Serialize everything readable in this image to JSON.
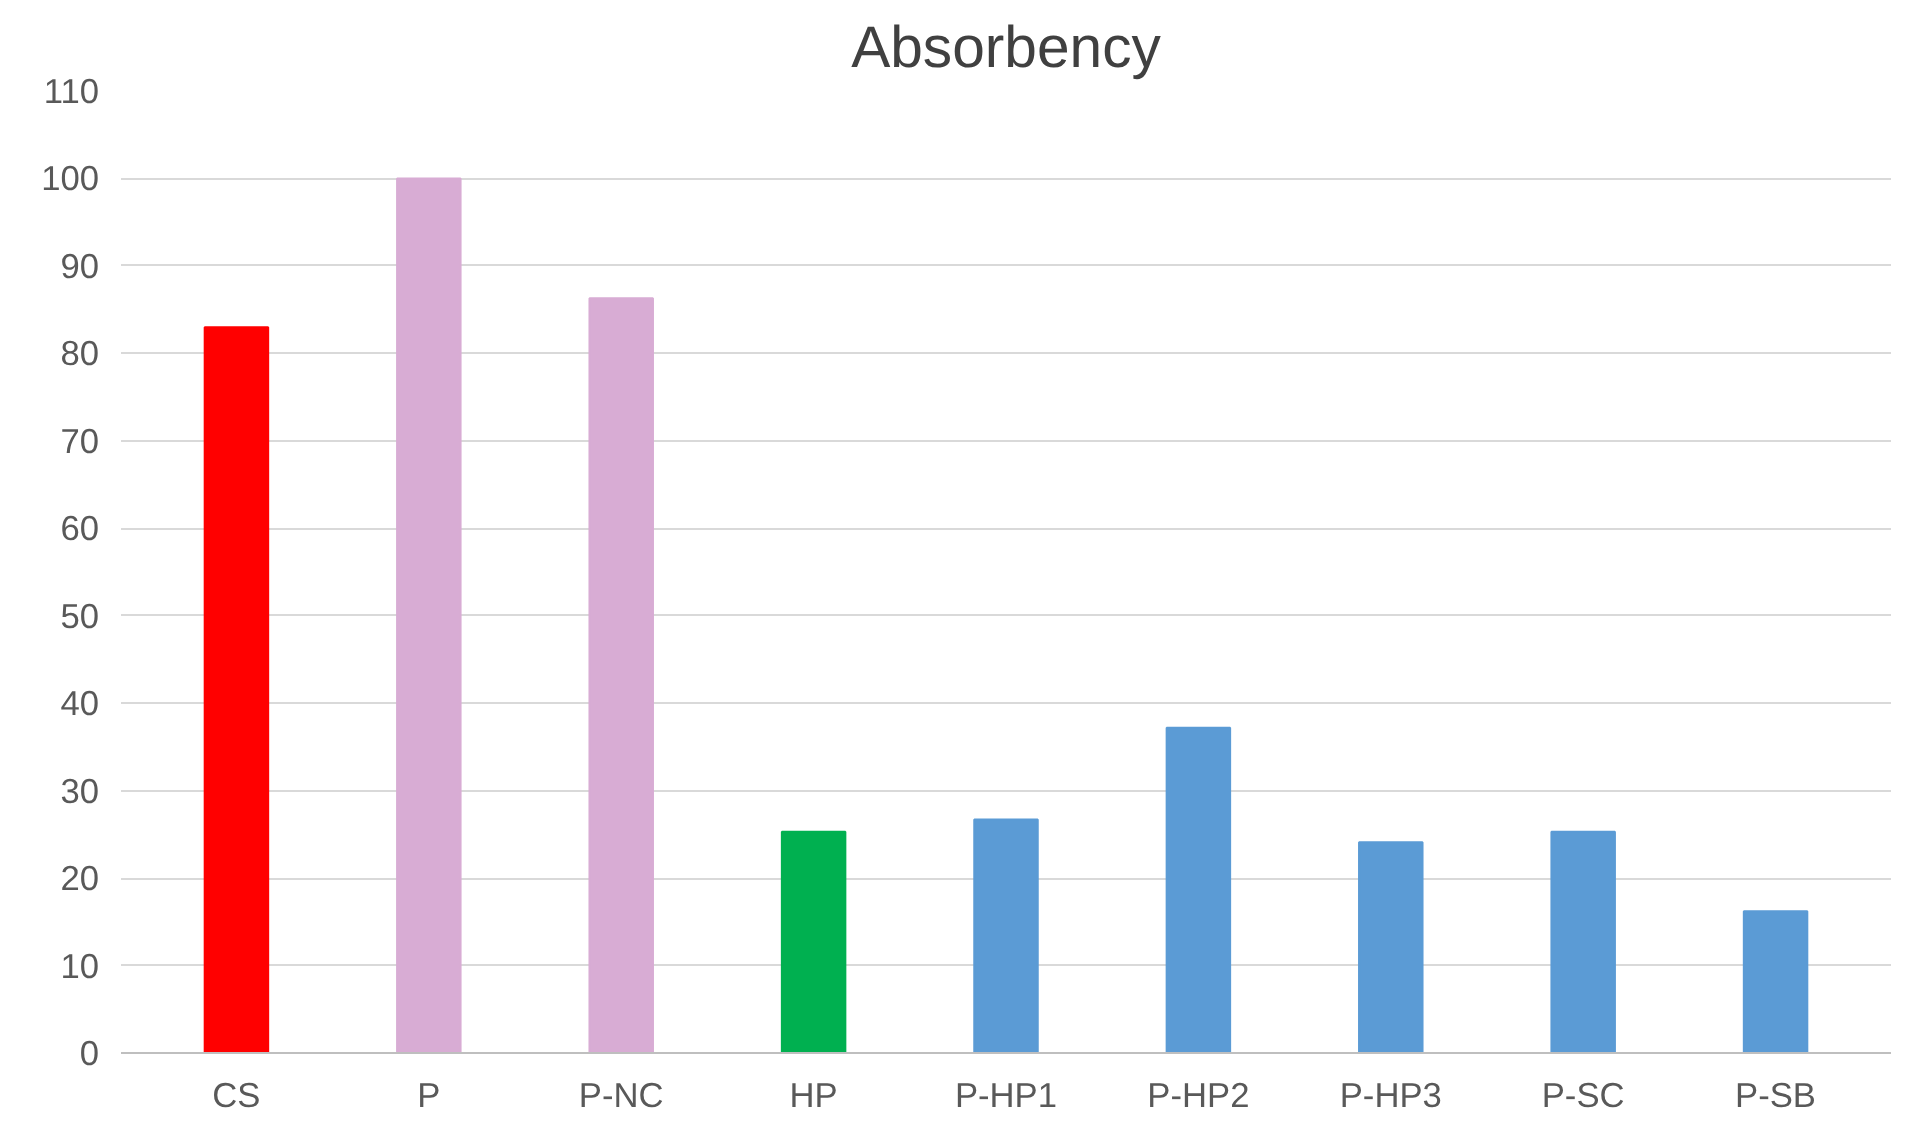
{
  "chart_data": {
    "type": "bar",
    "title": "Absorbency",
    "categories": [
      "CS",
      "P",
      "P-NC",
      "HP",
      "P-HP1",
      "P-HP2",
      "P-HP3",
      "P-SC",
      "P-SB"
    ],
    "values": [
      83,
      100,
      86.3,
      25.3,
      26.7,
      37.2,
      24.1,
      25.3,
      16.2
    ],
    "colors": [
      "#ff0000",
      "#d8acd4",
      "#d8acd4",
      "#00b050",
      "#5b9bd5",
      "#5b9bd5",
      "#5b9bd5",
      "#5b9bd5",
      "#5b9bd5"
    ],
    "ylim": [
      0,
      110
    ],
    "yticks": [
      0,
      10,
      20,
      30,
      40,
      50,
      60,
      70,
      80,
      90,
      100,
      110
    ],
    "grid": "y"
  }
}
